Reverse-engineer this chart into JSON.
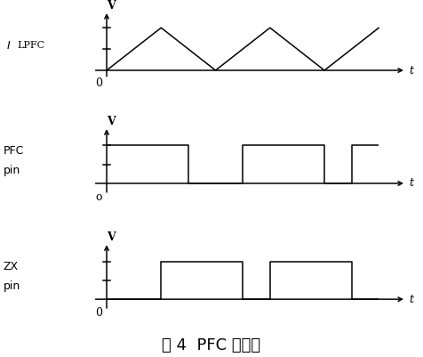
{
  "title": "图 4  PFC 的时序",
  "title_fontsize": 13,
  "background_color": "#ffffff",
  "line_color": "#000000",
  "subplot0": {
    "label_top": "V",
    "label_left": "ILPFC",
    "label_zero": "0",
    "label_t": "t",
    "tri_x": [
      0,
      2,
      4,
      6,
      8,
      10
    ],
    "tri_y": [
      0,
      1,
      0,
      1,
      0,
      1
    ]
  },
  "subplot1": {
    "label_top": "V",
    "label_left1": "PFC",
    "label_left2": "pin",
    "label_zero": "o",
    "label_t": "t",
    "sq_x": [
      0,
      3,
      3,
      5,
      5,
      8,
      8,
      9,
      9,
      10
    ],
    "sq_y": [
      1,
      1,
      0,
      0,
      1,
      1,
      0,
      0,
      1,
      1
    ]
  },
  "subplot2": {
    "label_top": "V",
    "label_left1": "ZX",
    "label_left2": "pin",
    "label_zero": "0",
    "label_t": "t",
    "sq_x": [
      0,
      2,
      2,
      5,
      5,
      6,
      6,
      9,
      9,
      10
    ],
    "sq_y": [
      0,
      0,
      1,
      1,
      0,
      0,
      1,
      1,
      0,
      0
    ]
  }
}
